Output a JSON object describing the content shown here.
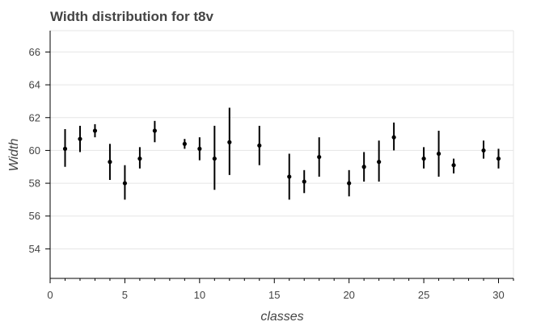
{
  "chart_data": {
    "type": "scatter",
    "title": "Width distribution for t8v",
    "xlabel": "classes",
    "ylabel": "Width",
    "xlim": [
      0,
      31
    ],
    "ylim": [
      52.2,
      67.3
    ],
    "xticks": [
      0,
      5,
      10,
      15,
      20,
      25,
      30
    ],
    "yticks": [
      54,
      56,
      58,
      60,
      62,
      64,
      66
    ],
    "grid": "horizontal",
    "colors": {
      "points": "#000000",
      "grid": "#e5e5e5",
      "title": "#444444"
    },
    "points": [
      {
        "x": 1,
        "y": 60.1,
        "low": 59.0,
        "high": 61.3
      },
      {
        "x": 2,
        "y": 60.7,
        "low": 59.9,
        "high": 61.5
      },
      {
        "x": 3,
        "y": 61.2,
        "low": 60.8,
        "high": 61.6
      },
      {
        "x": 4,
        "y": 59.3,
        "low": 58.2,
        "high": 60.4
      },
      {
        "x": 5,
        "y": 58.0,
        "low": 57.0,
        "high": 59.1
      },
      {
        "x": 6,
        "y": 59.5,
        "low": 58.9,
        "high": 60.2
      },
      {
        "x": 7,
        "y": 61.2,
        "low": 60.5,
        "high": 61.8
      },
      {
        "x": 9,
        "y": 60.4,
        "low": 60.1,
        "high": 60.7
      },
      {
        "x": 10,
        "y": 60.1,
        "low": 59.4,
        "high": 60.8
      },
      {
        "x": 11,
        "y": 59.5,
        "low": 57.6,
        "high": 61.5
      },
      {
        "x": 12,
        "y": 60.5,
        "low": 58.5,
        "high": 62.6
      },
      {
        "x": 14,
        "y": 60.3,
        "low": 59.1,
        "high": 61.5
      },
      {
        "x": 16,
        "y": 58.4,
        "low": 57.0,
        "high": 59.8
      },
      {
        "x": 17,
        "y": 58.1,
        "low": 57.4,
        "high": 58.8
      },
      {
        "x": 18,
        "y": 59.6,
        "low": 58.4,
        "high": 60.8
      },
      {
        "x": 20,
        "y": 58.0,
        "low": 57.2,
        "high": 58.8
      },
      {
        "x": 21,
        "y": 59.0,
        "low": 58.1,
        "high": 59.9
      },
      {
        "x": 22,
        "y": 59.3,
        "low": 58.1,
        "high": 60.6
      },
      {
        "x": 23,
        "y": 60.8,
        "low": 60.0,
        "high": 61.7
      },
      {
        "x": 25,
        "y": 59.5,
        "low": 58.9,
        "high": 60.2
      },
      {
        "x": 26,
        "y": 59.8,
        "low": 58.4,
        "high": 61.2
      },
      {
        "x": 27,
        "y": 59.1,
        "low": 58.6,
        "high": 59.5
      },
      {
        "x": 29,
        "y": 60.0,
        "low": 59.5,
        "high": 60.6
      },
      {
        "x": 30,
        "y": 59.5,
        "low": 58.9,
        "high": 60.1
      }
    ]
  }
}
